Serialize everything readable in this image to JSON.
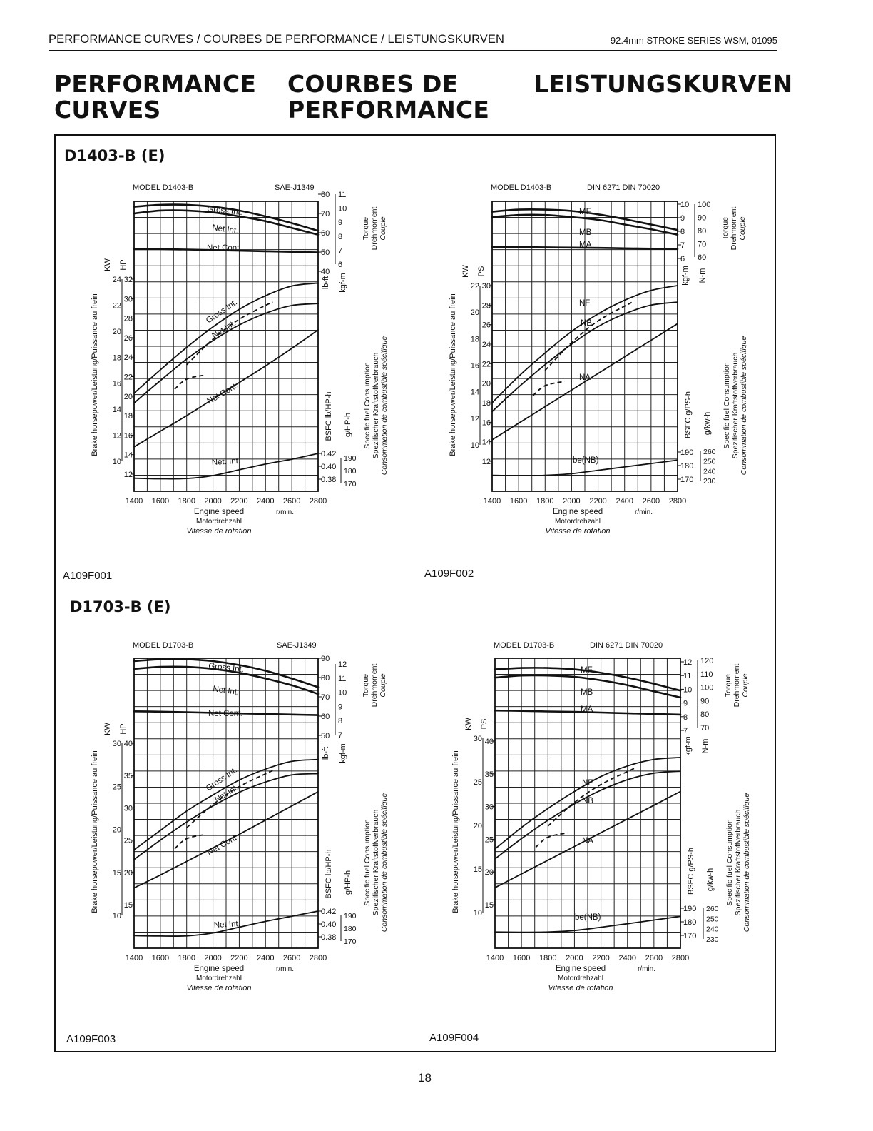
{
  "header": {
    "left": "PERFORMANCE CURVES / COURBES DE PERFORMANCE / LEISTUNGSKURVEN",
    "right": "92.4mm STROKE SERIES  WSM, 01095"
  },
  "titles": {
    "en": [
      "PERFORMANCE",
      "CURVES"
    ],
    "fr": [
      "COURBES DE",
      "PERFORMANCE"
    ],
    "de": [
      "LEISTUNGSKURVEN"
    ]
  },
  "sections": [
    "D1403-B (E)",
    "D1703-B (E)"
  ],
  "figure_ids": [
    "A109F001",
    "A109F002",
    "A109F003",
    "A109F004"
  ],
  "page_number": "18",
  "axis_text": {
    "power_axis": "Brake horsepower/Leistung/Puissance au frein",
    "torque_axis": [
      "Torque",
      "Drehmoment",
      "Couple"
    ],
    "fuel_axis": [
      "Specific fuel Consumption",
      "Spezifischer Kraftstoffverbrauch",
      "Consommation de combustible spécifique"
    ],
    "speed_label": [
      "Engine speed",
      "Motordrehzahl",
      "Vitesse de rotation"
    ],
    "speed_unit": "r/min.",
    "kw": "KW",
    "hp": "HP",
    "ps": "PS",
    "lbft": "lb-ft",
    "kgfm": "kgf-m",
    "nm": "N-m",
    "bsfc_lb": "BSFC lb/HP-h",
    "bsfc_g": "BSFC g/PS-h",
    "g_hph": "g/HP-h",
    "g_kwh": "g/kw-h"
  },
  "chart_data": [
    {
      "type": "line",
      "title": "MODEL D1403-B",
      "standard": "SAE-J1349",
      "xlabel": "Engine speed",
      "x": [
        1400,
        1600,
        1800,
        2000,
        2200,
        2400,
        2600,
        2800
      ],
      "xlim": [
        1400,
        2800
      ],
      "power_axis": {
        "unit": "HP",
        "range": [
          12,
          33
        ],
        "ticks": [
          12,
          14,
          16,
          18,
          20,
          22,
          24,
          26,
          28,
          30,
          32
        ],
        "secondary_unit": "KW",
        "secondary_ticks": [
          10,
          12,
          14,
          16,
          18,
          20,
          22,
          24
        ]
      },
      "torque_axis": {
        "unit": "lb-ft",
        "ticks": [
          40,
          50,
          60,
          70,
          80
        ],
        "secondary_unit": "kgf-m",
        "secondary_ticks": [
          6,
          7,
          8,
          9,
          10,
          11
        ]
      },
      "fuel_axis": {
        "unit": "lb/HP-h",
        "ticks": [
          0.38,
          0.4,
          0.42
        ],
        "secondary_unit": "g/HP-h",
        "secondary_ticks": [
          170,
          180,
          190
        ]
      },
      "series": [
        {
          "name": "Gross Int.",
          "quantity": "torque",
          "unit": "lb-ft",
          "values": [
            73.5,
            74.5,
            74.5,
            73.5,
            71.5,
            68.5,
            65,
            61
          ]
        },
        {
          "name": "Net Int.",
          "quantity": "torque",
          "unit": "lb-ft",
          "values": [
            70,
            71.5,
            71.5,
            70.5,
            68.5,
            66,
            62.5,
            59
          ]
        },
        {
          "name": "Net Cont.",
          "quantity": "torque",
          "unit": "lb-ft",
          "values": [
            51.5,
            51.5,
            51.3,
            51,
            50.7,
            50.4,
            50.1,
            49.8
          ]
        },
        {
          "name": "Gross Int.",
          "quantity": "power",
          "unit": "HP",
          "values": [
            20.3,
            22.7,
            25,
            27.1,
            28.9,
            30.3,
            31.3,
            31.6
          ]
        },
        {
          "name": "Net Int.",
          "quantity": "power",
          "unit": "HP",
          "values": [
            19.3,
            21.6,
            23.8,
            25.7,
            27.3,
            28.5,
            29.3,
            29.5
          ]
        },
        {
          "name": "Net Cont.",
          "quantity": "power",
          "unit": "HP",
          "values": [
            14.8,
            16.4,
            18,
            19.7,
            21.4,
            23.1,
            24.9,
            26.8
          ]
        },
        {
          "name": "Net. Int.",
          "quantity": "bsfc",
          "unit": "lb/HP-h",
          "values": [
            0.3814,
            0.3806,
            0.381,
            0.3855,
            0.3945,
            0.4035,
            0.411,
            0.42
          ]
        }
      ]
    },
    {
      "type": "line",
      "title": "MODEL D1403-B",
      "standard": "DIN 6271  DIN 70020",
      "xlabel": "Engine speed",
      "x": [
        1400,
        1600,
        1800,
        2000,
        2200,
        2400,
        2600,
        2800
      ],
      "xlim": [
        1400,
        2800
      ],
      "power_axis": {
        "unit": "PS",
        "range": [
          12,
          31
        ],
        "ticks": [
          12,
          14,
          16,
          18,
          20,
          22,
          24,
          26,
          28,
          30
        ],
        "secondary_unit": "KW",
        "secondary_ticks": [
          10,
          12,
          14,
          16,
          18,
          20,
          22
        ]
      },
      "torque_axis": {
        "unit": "kgf-m",
        "ticks": [
          6,
          7,
          8,
          9,
          10
        ],
        "secondary_unit": "N-m",
        "secondary_ticks": [
          60,
          70,
          80,
          90,
          100
        ]
      },
      "fuel_axis": {
        "unit": "g/PS-h",
        "ticks": [
          170,
          180,
          190
        ],
        "secondary_unit": "g/kw-h",
        "secondary_ticks": [
          230,
          240,
          250,
          260
        ]
      },
      "series": [
        {
          "name": "MF",
          "quantity": "torque",
          "unit": "kgf-m",
          "values": [
            9.45,
            9.6,
            9.6,
            9.5,
            9.25,
            8.9,
            8.5,
            8.1
          ]
        },
        {
          "name": "MB",
          "quantity": "torque",
          "unit": "kgf-m",
          "values": [
            9.05,
            9.2,
            9.2,
            9.05,
            8.85,
            8.5,
            8.15,
            7.75
          ]
        },
        {
          "name": "MA",
          "quantity": "torque",
          "unit": "kgf-m",
          "values": [
            6.85,
            6.85,
            6.82,
            6.8,
            6.78,
            6.75,
            6.72,
            6.7
          ]
        },
        {
          "name": "NF",
          "quantity": "power",
          "unit": "PS",
          "values": [
            18,
            20.7,
            23.1,
            25.3,
            27.1,
            28.5,
            29.5,
            30
          ]
        },
        {
          "name": "NB",
          "quantity": "power",
          "unit": "PS",
          "values": [
            17.1,
            19.6,
            21.9,
            24,
            25.8,
            27.1,
            28,
            28.3
          ]
        },
        {
          "name": "NA",
          "quantity": "power",
          "unit": "PS",
          "values": [
            14.2,
            15.9,
            17.6,
            19.3,
            21,
            22.7,
            24.4,
            26.1
          ]
        },
        {
          "name": "be(NB)",
          "quantity": "bsfc",
          "unit": "g/PS-h",
          "values": [
            172.8,
            172.6,
            172.8,
            174,
            176.5,
            179,
            181.5,
            184
          ]
        }
      ]
    },
    {
      "type": "line",
      "title": "MODEL D1703-B",
      "standard": "SAE-J1349",
      "xlabel": "Engine speed",
      "x": [
        1400,
        1600,
        1800,
        2000,
        2200,
        2400,
        2600,
        2800
      ],
      "xlim": [
        1400,
        2800
      ],
      "power_axis": {
        "unit": "HP",
        "range": [
          10,
          40
        ],
        "ticks": [
          15,
          20,
          25,
          30,
          35,
          40
        ],
        "secondary_unit": "KW",
        "secondary_ticks": [
          10,
          15,
          20,
          25,
          30
        ]
      },
      "torque_axis": {
        "unit": "lb-ft",
        "ticks": [
          50,
          60,
          70,
          80,
          90
        ],
        "secondary_unit": "kgf-m",
        "secondary_ticks": [
          7,
          8,
          9,
          10,
          11,
          12
        ]
      },
      "fuel_axis": {
        "unit": "lb/HP-h",
        "ticks": [
          0.38,
          0.4,
          0.42
        ],
        "secondary_unit": "g/HP-h",
        "secondary_ticks": [
          170,
          180,
          190
        ]
      },
      "series": [
        {
          "name": "Gross Int.",
          "quantity": "torque",
          "unit": "lb-ft",
          "values": [
            88.5,
            89.5,
            89.5,
            88.5,
            86.5,
            83.5,
            79.5,
            75
          ]
        },
        {
          "name": "Net Int.",
          "quantity": "torque",
          "unit": "lb-ft",
          "values": [
            84.5,
            85.5,
            85.5,
            84.5,
            82.5,
            79.5,
            76,
            71.5
          ]
        },
        {
          "name": "Net Cont.",
          "quantity": "torque",
          "unit": "lb-ft",
          "values": [
            62.5,
            62.3,
            62,
            61.7,
            61.4,
            61.1,
            60.8,
            60.5
          ]
        },
        {
          "name": "Gross Int.",
          "quantity": "power",
          "unit": "HP",
          "values": [
            23.5,
            26.5,
            29.5,
            32,
            34.3,
            36,
            37.2,
            37.5
          ]
        },
        {
          "name": "Net Int.",
          "quantity": "power",
          "unit": "HP",
          "values": [
            22,
            25,
            27.8,
            30.3,
            32.4,
            34,
            35.1,
            35.3
          ]
        },
        {
          "name": "Net Cont.",
          "quantity": "power",
          "unit": "HP",
          "values": [
            17.6,
            19.6,
            21.7,
            23.8,
            25.9,
            28.1,
            30.3,
            32.5
          ]
        },
        {
          "name": "Net Int.",
          "quantity": "bsfc",
          "unit": "lb/HP-h",
          "values": [
            0.3818,
            0.3812,
            0.3815,
            0.386,
            0.395,
            0.404,
            0.412,
            0.42
          ]
        }
      ]
    },
    {
      "type": "line",
      "title": "MODEL D1703-B",
      "standard": "DIN 6271  DIN 70020",
      "xlabel": "Engine speed",
      "x": [
        1400,
        1600,
        1800,
        2000,
        2200,
        2400,
        2600,
        2800
      ],
      "xlim": [
        1400,
        2800
      ],
      "power_axis": {
        "unit": "PS",
        "range": [
          12,
          40
        ],
        "ticks": [
          15,
          20,
          25,
          30,
          35,
          40
        ],
        "secondary_unit": "KW",
        "secondary_ticks": [
          10,
          15,
          20,
          25,
          30
        ]
      },
      "torque_axis": {
        "unit": "kgf-m",
        "ticks": [
          7,
          8,
          9,
          10,
          11,
          12
        ],
        "secondary_unit": "N-m",
        "secondary_ticks": [
          70,
          80,
          90,
          100,
          110,
          120
        ]
      },
      "fuel_axis": {
        "unit": "g/PS-h",
        "ticks": [
          170,
          180,
          190
        ],
        "secondary_unit": "g/kw-h",
        "secondary_ticks": [
          230,
          240,
          250,
          260
        ]
      },
      "series": [
        {
          "name": "MF",
          "quantity": "torque",
          "unit": "kgf-m",
          "values": [
            11.45,
            11.55,
            11.55,
            11.45,
            11.2,
            10.85,
            10.4,
            9.9
          ]
        },
        {
          "name": "MB",
          "quantity": "torque",
          "unit": "kgf-m",
          "values": [
            10.85,
            11,
            11,
            10.9,
            10.65,
            10.3,
            9.85,
            9.4
          ]
        },
        {
          "name": "MA",
          "quantity": "torque",
          "unit": "kgf-m",
          "values": [
            8.45,
            8.42,
            8.38,
            8.35,
            8.3,
            8.25,
            8.2,
            8.15
          ]
        },
        {
          "name": "NF",
          "quantity": "power",
          "unit": "PS",
          "values": [
            23.5,
            26.8,
            29.7,
            32.3,
            34.6,
            36.2,
            37.2,
            37.5
          ]
        },
        {
          "name": "NB",
          "quantity": "power",
          "unit": "PS",
          "values": [
            22,
            25.1,
            27.9,
            30.4,
            32.5,
            34.1,
            35.1,
            35.4
          ]
        },
        {
          "name": "NA",
          "quantity": "power",
          "unit": "PS",
          "values": [
            17.6,
            19.7,
            21.8,
            23.9,
            26,
            28.1,
            30.2,
            32.3
          ]
        },
        {
          "name": "be(NB)",
          "quantity": "bsfc",
          "unit": "g/PS-h",
          "values": [
            172.5,
            172.3,
            172.5,
            173.6,
            176,
            178.6,
            181.3,
            184
          ]
        }
      ]
    }
  ]
}
